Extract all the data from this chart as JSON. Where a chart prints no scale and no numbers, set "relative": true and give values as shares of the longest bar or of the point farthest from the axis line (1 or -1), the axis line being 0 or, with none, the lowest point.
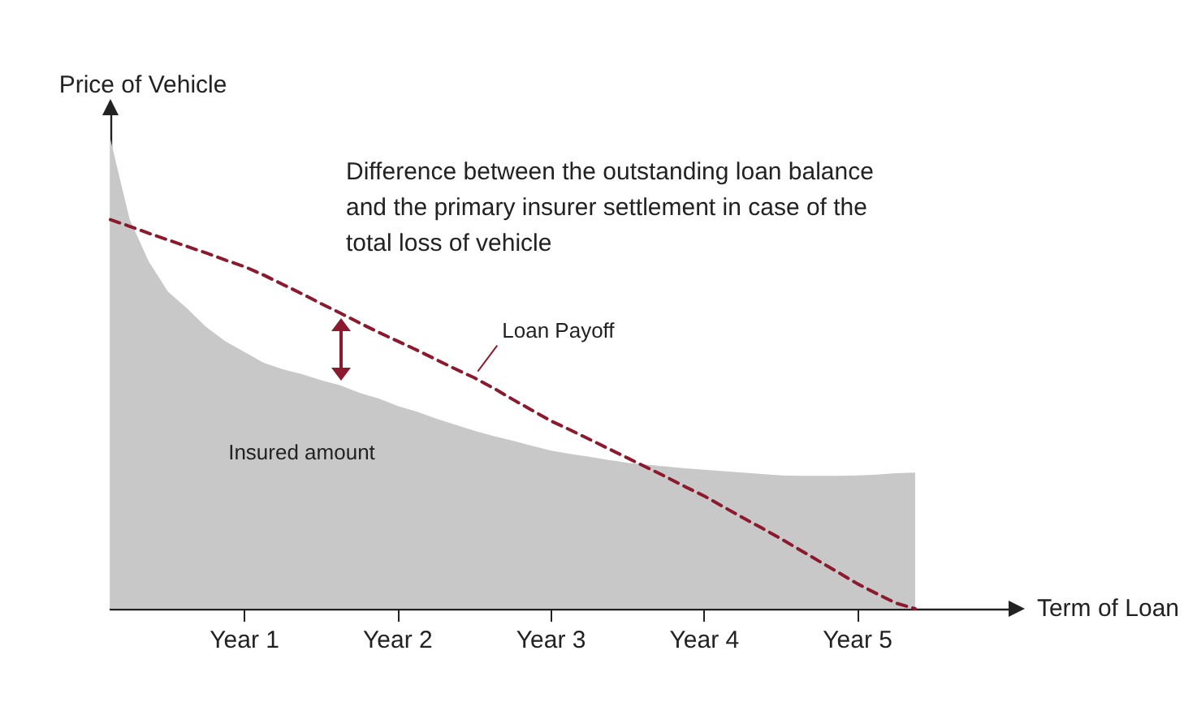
{
  "chart_data": {
    "type": "area",
    "relative": true,
    "xlabel": "Term of Loan",
    "ylabel": "Price of Vehicle",
    "annotations": [
      "Difference between the outstanding loan balance and the primary insurer settlement in case of the total loss of vehicle"
    ],
    "categories": [
      null,
      null,
      null,
      null,
      null,
      null,
      null,
      "Year 1",
      null,
      null,
      null,
      null,
      null,
      null,
      null,
      "Year 2",
      null,
      null,
      null,
      null,
      null,
      null,
      null,
      "Year 3",
      null,
      null,
      null,
      null,
      null,
      null,
      null,
      "Year 4",
      null,
      null,
      null,
      null,
      null,
      null,
      null,
      "Year 5",
      null,
      null,
      null,
      null,
      null,
      null,
      null,
      null
    ],
    "tick_labels": "x",
    "grid": false,
    "legend": false,
    "marker": "none",
    "series": [
      {
        "name": "Insured amount",
        "color": "#c8c8c8",
        "values": [
          1.0,
          0.83,
          0.74,
          0.676,
          0.64,
          0.6,
          0.57,
          0.547,
          0.524,
          0.51,
          0.5,
          0.487,
          0.476,
          0.46,
          0.448,
          0.432,
          0.42,
          0.405,
          0.392,
          0.379,
          0.368,
          0.358,
          0.347,
          0.337,
          0.33,
          0.324,
          0.317,
          0.311,
          0.307,
          0.303,
          0.299,
          0.296,
          0.293,
          0.29,
          0.287,
          0.284,
          0.283,
          0.283,
          0.283,
          0.284,
          0.286,
          0.289,
          0.29,
          null,
          null,
          null,
          null,
          null
        ]
      },
      {
        "name": "Loan Payoff",
        "type": "line",
        "color": "#8b1a2e",
        "line_style": "dashed",
        "values": [
          0.829,
          0.815,
          0.8,
          0.786,
          0.772,
          0.758,
          0.743,
          0.729,
          0.711,
          0.691,
          0.671,
          0.65,
          0.63,
          0.609,
          0.589,
          0.57,
          0.551,
          0.531,
          0.511,
          0.492,
          0.47,
          0.446,
          0.423,
          0.4,
          0.381,
          0.361,
          0.341,
          0.321,
          0.301,
          0.281,
          0.26,
          0.24,
          0.217,
          0.194,
          0.172,
          0.149,
          0.125,
          0.101,
          0.077,
          0.053,
          0.032,
          0.012,
          0,
          null,
          null,
          null,
          null,
          null
        ]
      }
    ]
  }
}
